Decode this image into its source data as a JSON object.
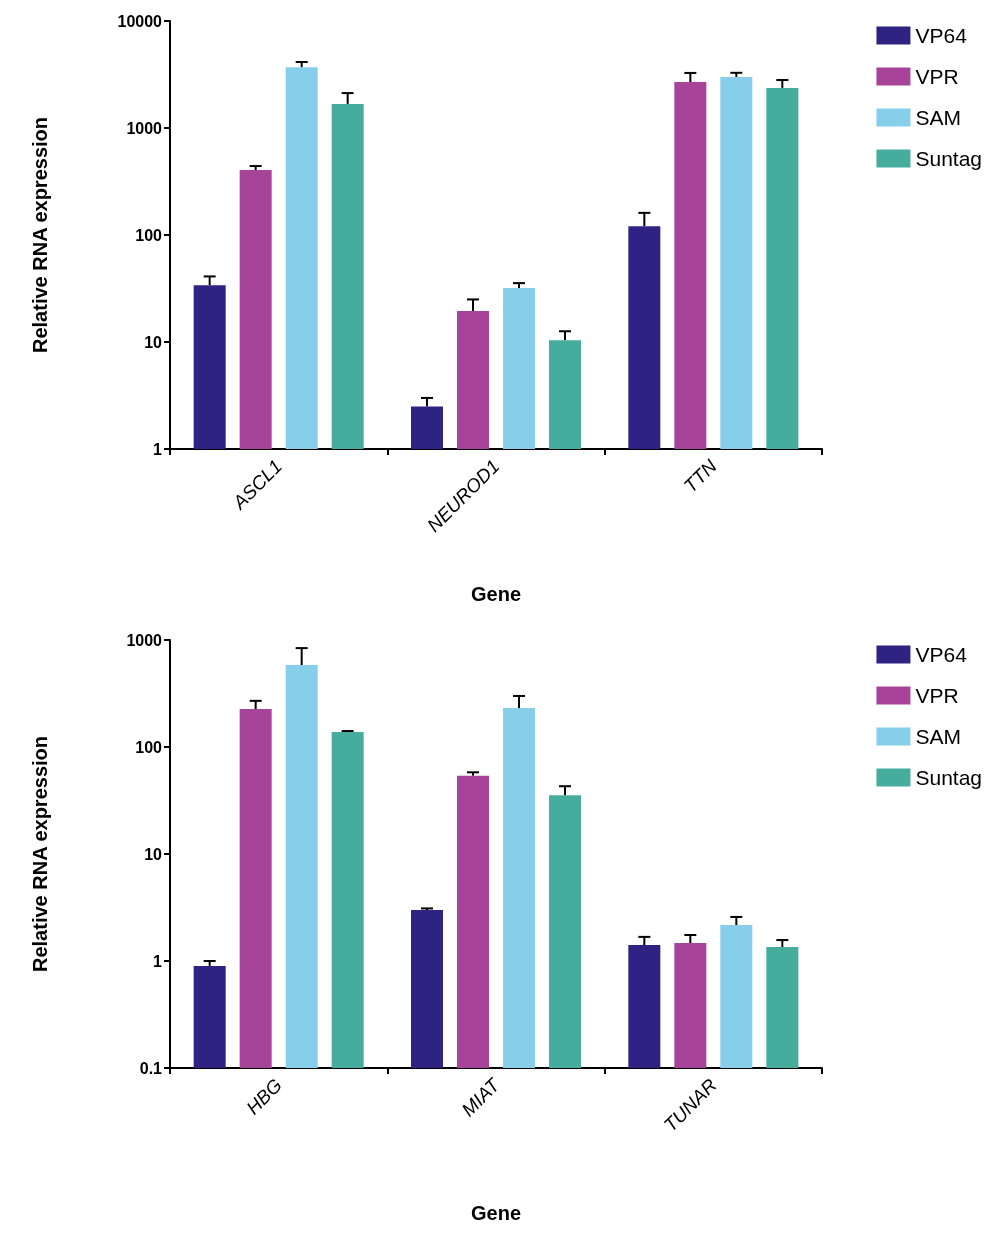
{
  "chart_data": [
    {
      "type": "bar",
      "xlabel": "Gene",
      "ylabel": "Relative RNA expression",
      "categories": [
        "ASCL1",
        "NEUROD1",
        "TTN"
      ],
      "log": "y",
      "ylim": [
        1,
        10000
      ],
      "yticks": [
        1,
        10,
        100,
        1000,
        10000
      ],
      "legend": "top right",
      "grid": false,
      "series": [
        {
          "name": "VP64",
          "color": "#2e2383",
          "values": [
            34,
            2.5,
            121
          ],
          "errors": [
            [
              34,
              41
            ],
            [
              2.5,
              3.0
            ],
            [
              121,
              161
            ]
          ]
        },
        {
          "name": "VPR",
          "color": "#a7449a",
          "values": [
            405,
            19.5,
            2690
          ],
          "errors": [
            [
              405,
              441
            ],
            [
              19.5,
              25
            ],
            [
              2690,
              3270
            ]
          ]
        },
        {
          "name": "SAM",
          "color": "#87ceeb",
          "values": [
            3700,
            32,
            3000
          ],
          "errors": [
            [
              3700,
              4140
            ],
            [
              32,
              35.5
            ],
            [
              3000,
              3280
            ]
          ]
        },
        {
          "name": "Suntag",
          "color": "#46ad9e",
          "values": [
            1680,
            10.4,
            2370
          ],
          "errors": [
            [
              1680,
              2120
            ],
            [
              10.4,
              12.6
            ],
            [
              2370,
              2810
            ]
          ]
        }
      ]
    },
    {
      "type": "bar",
      "xlabel": "Gene",
      "ylabel": "Relative RNA expression",
      "categories": [
        "HBG",
        "MIAT",
        "TUNAR"
      ],
      "log": "y",
      "ylim": [
        0.1,
        1000
      ],
      "yticks": [
        0.1,
        1,
        10,
        100,
        1000
      ],
      "legend": "top right",
      "grid": false,
      "series": [
        {
          "name": "VP64",
          "color": "#2e2383",
          "values": [
            0.9,
            3.0,
            1.41
          ],
          "errors": [
            [
              0.9,
              1.0
            ],
            [
              3.0,
              3.1
            ],
            [
              1.41,
              1.68
            ]
          ]
        },
        {
          "name": "VPR",
          "color": "#a7449a",
          "values": [
            226,
            54,
            1.47
          ],
          "errors": [
            [
              226,
              270
            ],
            [
              54,
              58
            ],
            [
              1.47,
              1.75
            ]
          ]
        },
        {
          "name": "SAM",
          "color": "#87ceeb",
          "values": [
            583,
            231,
            2.17
          ],
          "errors": [
            [
              583,
              840
            ],
            [
              231,
              300
            ],
            [
              2.17,
              2.58
            ]
          ]
        },
        {
          "name": "Suntag",
          "color": "#46ad9e",
          "values": [
            138,
            35.5,
            1.35
          ],
          "errors": [
            [
              138,
              141
            ],
            [
              35.5,
              43
            ],
            [
              1.35,
              1.57
            ]
          ]
        }
      ]
    }
  ]
}
